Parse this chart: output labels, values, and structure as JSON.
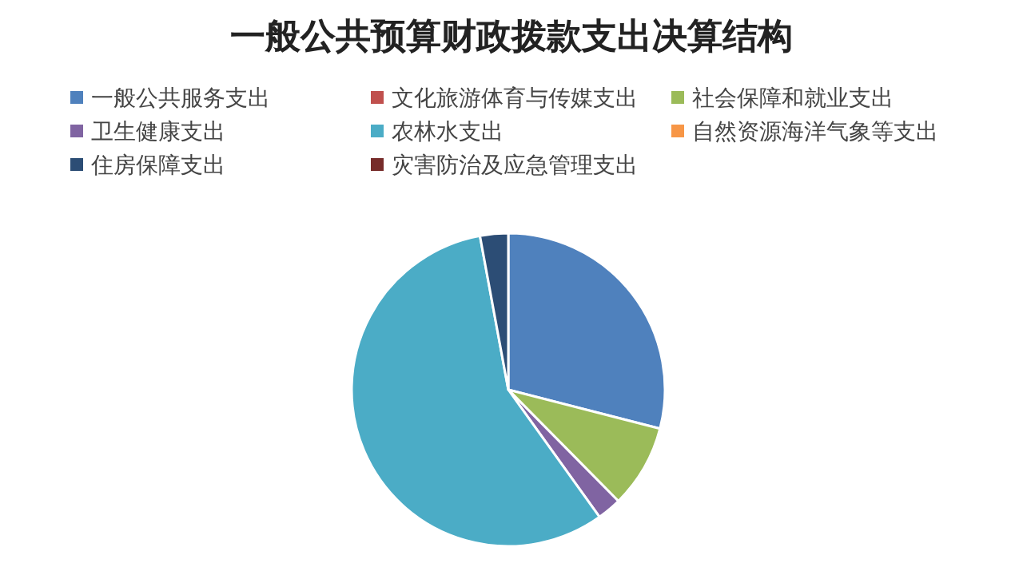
{
  "chart_data": {
    "type": "pie",
    "title": "一般公共预算财政拨款支出决算结构",
    "categories": [
      "一般公共服务支出",
      "文化旅游体育与传媒支出",
      "社会保障和就业支出",
      "卫生健康支出",
      "农林水支出",
      "自然资源海洋气象等支出",
      "住房保障支出",
      "灾害防治及应急管理支出"
    ],
    "values": [
      29,
      0,
      8.6,
      2.5,
      57,
      0,
      2.9,
      0
    ],
    "colors": [
      "#4f81bd",
      "#c0504d",
      "#9bbb59",
      "#8064a2",
      "#4bacc6",
      "#f79646",
      "#2c4d75",
      "#772c2a"
    ],
    "legend": "top"
  }
}
